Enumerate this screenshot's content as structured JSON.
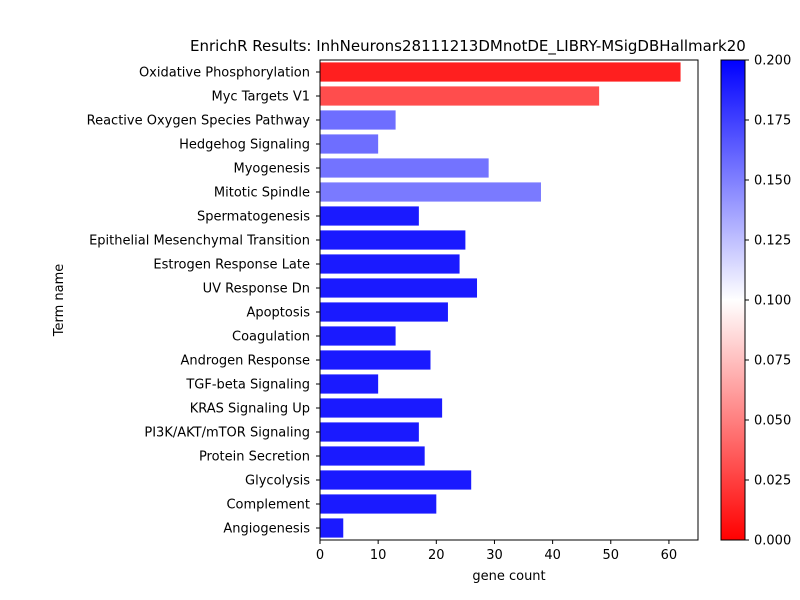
{
  "chart_data": {
    "type": "bar",
    "orientation": "horizontal",
    "title": "EnrichR Results: InhNeurons28111213DMnotDE_LIBRY-MSigDBHallmark20",
    "xlabel": "gene count",
    "ylabel": "Term name",
    "xlim": [
      0,
      65
    ],
    "xticks": [
      "0",
      "10",
      "20",
      "30",
      "40",
      "50",
      "60"
    ],
    "grid": false,
    "colorbar": {
      "range": [
        0.0,
        0.2
      ],
      "colormap": "bwr_r",
      "ticks": [
        "0.000",
        "0.025",
        "0.050",
        "0.075",
        "0.100",
        "0.125",
        "0.150",
        "0.175",
        "0.200"
      ]
    },
    "bars": [
      {
        "term": "Oxidative Phosphorylation",
        "gene_count": 62,
        "color_value": 0.012
      },
      {
        "term": "Myc Targets V1",
        "gene_count": 48,
        "color_value": 0.03
      },
      {
        "term": "Reactive Oxygen Species Pathway",
        "gene_count": 13,
        "color_value": 0.157
      },
      {
        "term": "Hedgehog Signaling",
        "gene_count": 10,
        "color_value": 0.157
      },
      {
        "term": "Myogenesis",
        "gene_count": 29,
        "color_value": 0.155
      },
      {
        "term": "Mitotic Spindle",
        "gene_count": 38,
        "color_value": 0.152
      },
      {
        "term": "Spermatogenesis",
        "gene_count": 17,
        "color_value": 0.19
      },
      {
        "term": "Epithelial Mesenchymal Transition",
        "gene_count": 25,
        "color_value": 0.19
      },
      {
        "term": "Estrogen Response Late",
        "gene_count": 24,
        "color_value": 0.19
      },
      {
        "term": "UV Response Dn",
        "gene_count": 27,
        "color_value": 0.19
      },
      {
        "term": "Apoptosis",
        "gene_count": 22,
        "color_value": 0.19
      },
      {
        "term": "Coagulation",
        "gene_count": 13,
        "color_value": 0.19
      },
      {
        "term": "Androgen Response",
        "gene_count": 19,
        "color_value": 0.19
      },
      {
        "term": "TGF-beta Signaling",
        "gene_count": 10,
        "color_value": 0.19
      },
      {
        "term": "KRAS Signaling Up",
        "gene_count": 21,
        "color_value": 0.19
      },
      {
        "term": "PI3K/AKT/mTOR  Signaling",
        "gene_count": 17,
        "color_value": 0.19
      },
      {
        "term": "Protein Secretion",
        "gene_count": 18,
        "color_value": 0.19
      },
      {
        "term": "Glycolysis",
        "gene_count": 26,
        "color_value": 0.19
      },
      {
        "term": "Complement",
        "gene_count": 20,
        "color_value": 0.19
      },
      {
        "term": "Angiogenesis",
        "gene_count": 4,
        "color_value": 0.19
      }
    ]
  }
}
